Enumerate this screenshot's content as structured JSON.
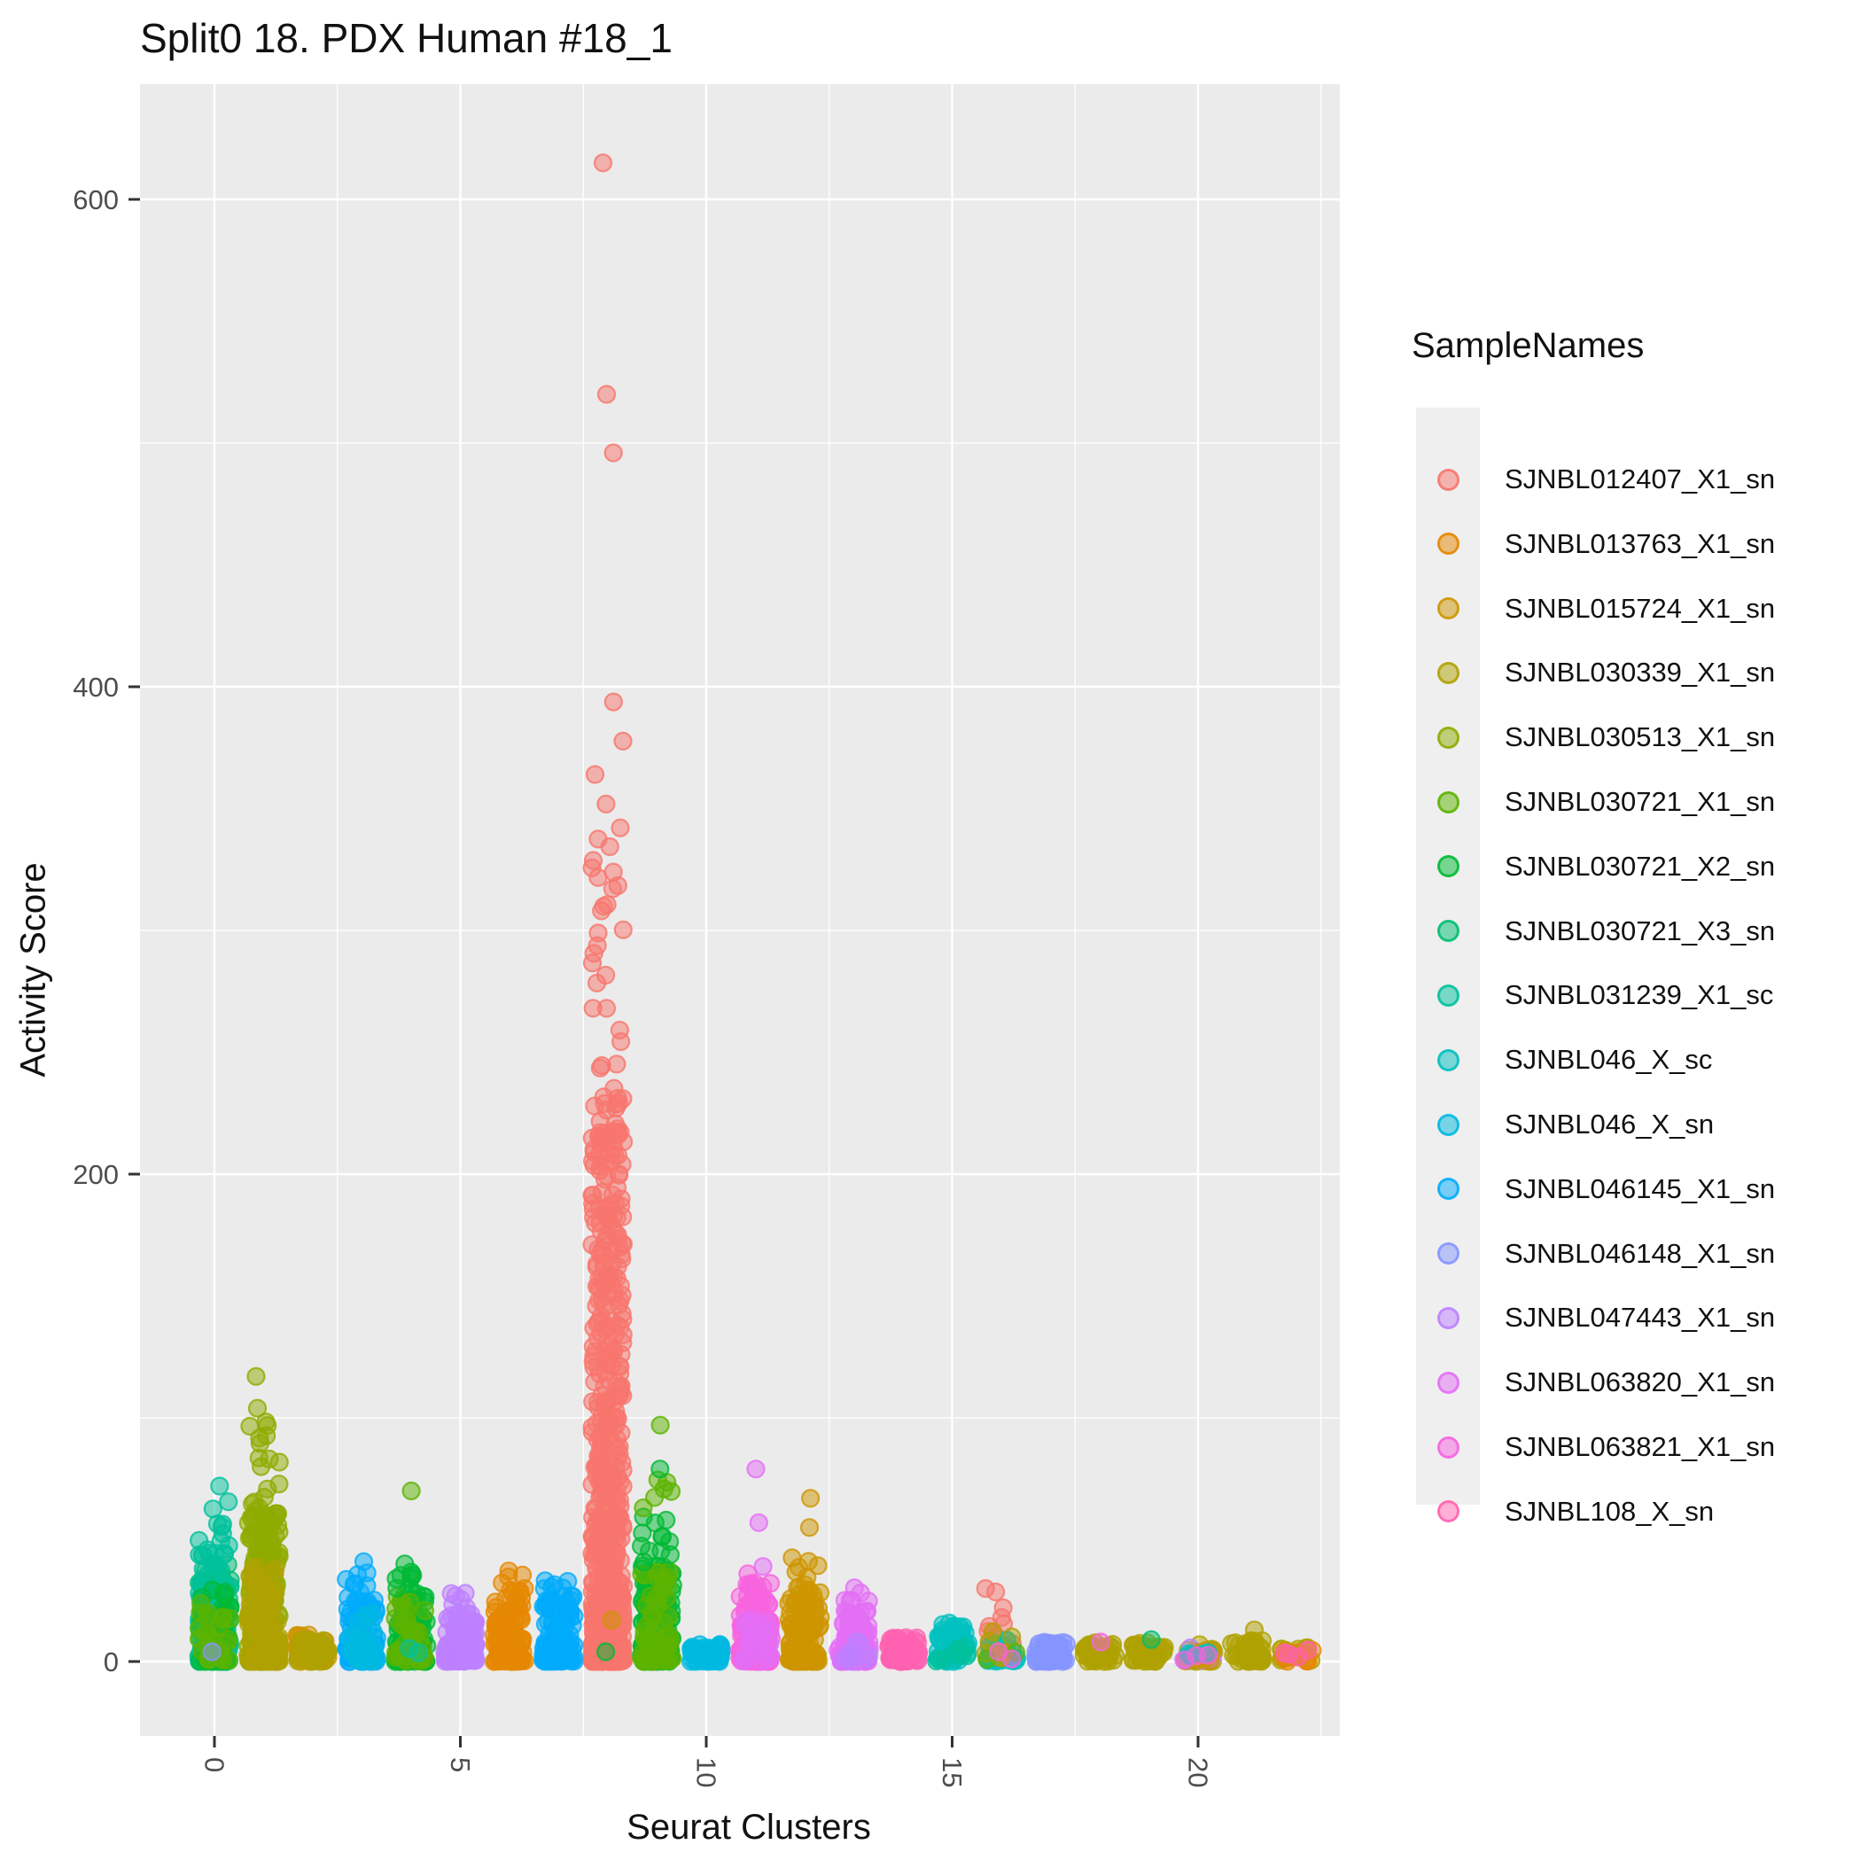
{
  "chart": {
    "title": "Split0 18. PDX Human #18_1",
    "xlabel": "Seurat Clusters",
    "ylabel": "Activity Score",
    "legend_title": "SampleNames"
  },
  "chart_data": {
    "type": "scatter",
    "variant": "jitter-strip-plot",
    "title": "Split0 18. PDX Human #18_1",
    "xlabel": "Seurat Clusters",
    "ylabel": "Activity Score",
    "legend_title": "SampleNames",
    "legend_position": "right",
    "grid": true,
    "panel_background": "#EBEBEB",
    "gridline_color": "#FFFFFF",
    "x_ticks": [
      0,
      5,
      10,
      15,
      20
    ],
    "x_minor_gridlines": [
      2.5,
      7.5,
      12.5,
      17.5,
      22.5
    ],
    "y_ticks": [
      0,
      200,
      400,
      600
    ],
    "y_minor_gridlines": [
      100,
      300,
      500
    ],
    "xlim": [
      -1.5,
      22.9
    ],
    "ylim": [
      -30,
      647
    ],
    "point_alpha": 0.5,
    "samples": [
      {
        "name": "SJNBL012407_X1_sn",
        "color": "#F8766D"
      },
      {
        "name": "SJNBL013763_X1_sn",
        "color": "#E58700"
      },
      {
        "name": "SJNBL015724_X1_sn",
        "color": "#CE9500"
      },
      {
        "name": "SJNBL030339_X1_sn",
        "color": "#AFA100"
      },
      {
        "name": "SJNBL030513_X1_sn",
        "color": "#8EAB00"
      },
      {
        "name": "SJNBL030721_X1_sn",
        "color": "#5CB300"
      },
      {
        "name": "SJNBL030721_X2_sn",
        "color": "#00B934"
      },
      {
        "name": "SJNBL030721_X3_sn",
        "color": "#00BE70"
      },
      {
        "name": "SJNBL031239_X1_sc",
        "color": "#00C19C"
      },
      {
        "name": "SJNBL046_X_sc",
        "color": "#00C0C0"
      },
      {
        "name": "SJNBL046_X_sn",
        "color": "#00B9E0"
      },
      {
        "name": "SJNBL046145_X1_sn",
        "color": "#00ABFB"
      },
      {
        "name": "SJNBL046148_X1_sn",
        "color": "#8495FF"
      },
      {
        "name": "SJNBL047443_X1_sn",
        "color": "#BD80FF"
      },
      {
        "name": "SJNBL063820_X1_sn",
        "color": "#E36EF6"
      },
      {
        "name": "SJNBL063821_X1_sn",
        "color": "#F763DF"
      },
      {
        "name": "SJNBL108_X_sn",
        "color": "#FF62B0"
      }
    ],
    "clusters": [
      {
        "cluster": 0,
        "groups": [
          {
            "sample": "SJNBL030721_X3_sn",
            "n": 140,
            "lo": 0,
            "hi": 40,
            "p": 2.0
          },
          {
            "sample": "SJNBL031239_X1_sc",
            "n": 90,
            "lo": 0,
            "hi": 48,
            "p": 1.8
          },
          {
            "sample": "SJNBL030721_X2_sn",
            "n": 50,
            "lo": 0,
            "hi": 30,
            "p": 2.0
          },
          {
            "sample": "SJNBL030721_X1_sn",
            "n": 30,
            "lo": 0,
            "hi": 25,
            "p": 2.0
          },
          {
            "sample": "SJNBL031239_X1_sc",
            "n": 8,
            "lo": 40,
            "hi": 66,
            "p": 1.0
          }
        ],
        "outliers": [
          {
            "sample": "SJNBL031239_X1_sc",
            "v": 72
          },
          {
            "sample": "SJNBL046148_X1_sn",
            "v": 4
          }
        ]
      },
      {
        "cluster": 1,
        "groups": [
          {
            "sample": "SJNBL030513_X1_sn",
            "n": 240,
            "lo": 0,
            "hi": 62,
            "p": 2.0
          },
          {
            "sample": "SJNBL030339_X1_sn",
            "n": 110,
            "lo": 0,
            "hi": 40,
            "p": 2.2
          },
          {
            "sample": "SJNBL030513_X1_sn",
            "n": 10,
            "lo": 62,
            "hi": 86,
            "p": 1.0
          },
          {
            "sample": "SJNBL030513_X1_sn",
            "n": 7,
            "lo": 86,
            "hi": 104,
            "p": 1.0
          }
        ],
        "outliers": [
          {
            "sample": "SJNBL030513_X1_sn",
            "v": 117
          }
        ]
      },
      {
        "cluster": 2,
        "groups": [
          {
            "sample": "SJNBL015724_X1_sn",
            "n": 45,
            "lo": 0,
            "hi": 11,
            "p": 1.8
          },
          {
            "sample": "SJNBL030339_X1_sn",
            "n": 35,
            "lo": 0,
            "hi": 9,
            "p": 1.8
          }
        ],
        "outliers": []
      },
      {
        "cluster": 3,
        "groups": [
          {
            "sample": "SJNBL046145_X1_sn",
            "n": 120,
            "lo": 0,
            "hi": 26,
            "p": 2.0
          },
          {
            "sample": "SJNBL046_X_sn",
            "n": 30,
            "lo": 0,
            "hi": 20,
            "p": 2.0
          },
          {
            "sample": "SJNBL046145_X1_sn",
            "n": 8,
            "lo": 26,
            "hi": 38,
            "p": 1.0
          }
        ],
        "outliers": [
          {
            "sample": "SJNBL046145_X1_sn",
            "v": 41
          }
        ]
      },
      {
        "cluster": 4,
        "groups": [
          {
            "sample": "SJNBL030721_X2_sn",
            "n": 110,
            "lo": 0,
            "hi": 30,
            "p": 2.0
          },
          {
            "sample": "SJNBL030721_X1_sn",
            "n": 40,
            "lo": 0,
            "hi": 28,
            "p": 2.0
          },
          {
            "sample": "SJNBL030721_X2_sn",
            "n": 8,
            "lo": 30,
            "hi": 42,
            "p": 1.0
          },
          {
            "sample": "SJNBL031239_X1_sc",
            "n": 2,
            "lo": 0,
            "hi": 6,
            "p": 1.0
          }
        ],
        "outliers": [
          {
            "sample": "SJNBL030721_X1_sn",
            "v": 70
          }
        ]
      },
      {
        "cluster": 5,
        "groups": [
          {
            "sample": "SJNBL047443_X1_sn",
            "n": 90,
            "lo": 0,
            "hi": 20,
            "p": 2.0
          },
          {
            "sample": "SJNBL047443_X1_sn",
            "n": 6,
            "lo": 20,
            "hi": 29,
            "p": 1.0
          }
        ],
        "outliers": []
      },
      {
        "cluster": 6,
        "groups": [
          {
            "sample": "SJNBL013763_X1_sn",
            "n": 120,
            "lo": 0,
            "hi": 30,
            "p": 2.0
          },
          {
            "sample": "SJNBL013763_X1_sn",
            "n": 6,
            "lo": 28,
            "hi": 40,
            "p": 1.0
          }
        ],
        "outliers": []
      },
      {
        "cluster": 7,
        "groups": [
          {
            "sample": "SJNBL046145_X1_sn",
            "n": 110,
            "lo": 0,
            "hi": 28,
            "p": 2.0
          },
          {
            "sample": "SJNBL046145_X1_sn",
            "n": 6,
            "lo": 26,
            "hi": 36,
            "p": 1.0
          }
        ],
        "outliers": []
      },
      {
        "cluster": 8,
        "groups": [
          {
            "sample": "SJNBL012407_X1_sn",
            "n": 650,
            "lo": 0,
            "hi": 238,
            "p": 2.6
          },
          {
            "sample": "SJNBL012407_X1_sn",
            "n": 12,
            "lo": 238,
            "hi": 295,
            "p": 1.0
          },
          {
            "sample": "SJNBL012407_X1_sn",
            "n": 18,
            "lo": 295,
            "hi": 395,
            "p": 1.0
          }
        ],
        "outliers": [
          {
            "sample": "SJNBL012407_X1_sn",
            "v": 496
          },
          {
            "sample": "SJNBL012407_X1_sn",
            "v": 520
          },
          {
            "sample": "SJNBL012407_X1_sn",
            "v": 615
          },
          {
            "sample": "SJNBL015724_X1_sn",
            "v": 17
          },
          {
            "sample": "SJNBL030721_X2_sn",
            "v": 4
          }
        ]
      },
      {
        "cluster": 9,
        "groups": [
          {
            "sample": "SJNBL030721_X2_sn",
            "n": 160,
            "lo": 0,
            "hi": 40,
            "p": 2.0
          },
          {
            "sample": "SJNBL030721_X1_sn",
            "n": 70,
            "lo": 0,
            "hi": 38,
            "p": 2.0
          },
          {
            "sample": "SJNBL030721_X2_sn",
            "n": 12,
            "lo": 40,
            "hi": 60,
            "p": 1.0
          },
          {
            "sample": "SJNBL030721_X1_sn",
            "n": 6,
            "lo": 57,
            "hi": 80,
            "p": 1.0
          }
        ],
        "outliers": [
          {
            "sample": "SJNBL030721_X1_sn",
            "v": 97
          },
          {
            "sample": "SJNBL030721_X2_sn",
            "v": 79
          }
        ]
      },
      {
        "cluster": 10,
        "groups": [
          {
            "sample": "SJNBL046_X_sn",
            "n": 60,
            "lo": 0,
            "hi": 7,
            "p": 1.5
          }
        ],
        "outliers": []
      },
      {
        "cluster": 11,
        "groups": [
          {
            "sample": "SJNBL063821_X1_sn",
            "n": 150,
            "lo": 0,
            "hi": 33,
            "p": 2.0
          },
          {
            "sample": "SJNBL063820_X1_sn",
            "n": 30,
            "lo": 0,
            "hi": 25,
            "p": 2.0
          }
        ],
        "outliers": [
          {
            "sample": "SJNBL063820_X1_sn",
            "v": 39
          },
          {
            "sample": "SJNBL063820_X1_sn",
            "v": 57
          },
          {
            "sample": "SJNBL063820_X1_sn",
            "v": 79
          },
          {
            "sample": "SJNBL063821_X1_sn",
            "v": 36
          }
        ]
      },
      {
        "cluster": 12,
        "groups": [
          {
            "sample": "SJNBL015724_X1_sn",
            "n": 130,
            "lo": 0,
            "hi": 32,
            "p": 2.2
          },
          {
            "sample": "SJNBL015724_X1_sn",
            "n": 6,
            "lo": 32,
            "hi": 44,
            "p": 1.0
          }
        ],
        "outliers": [
          {
            "sample": "SJNBL015724_X1_sn",
            "v": 55
          },
          {
            "sample": "SJNBL015724_X1_sn",
            "v": 67
          }
        ]
      },
      {
        "cluster": 13,
        "groups": [
          {
            "sample": "SJNBL063820_X1_sn",
            "n": 110,
            "lo": 0,
            "hi": 22,
            "p": 2.0
          },
          {
            "sample": "SJNBL063820_X1_sn",
            "n": 6,
            "lo": 22,
            "hi": 32,
            "p": 1.0
          },
          {
            "sample": "SJNBL047443_X1_sn",
            "n": 10,
            "lo": 0,
            "hi": 10,
            "p": 2.0
          }
        ],
        "outliers": []
      },
      {
        "cluster": 14,
        "groups": [
          {
            "sample": "SJNBL108_X_sn",
            "n": 70,
            "lo": 0,
            "hi": 10,
            "p": 1.6
          }
        ],
        "outliers": []
      },
      {
        "cluster": 15,
        "groups": [
          {
            "sample": "SJNBL046_X_sc",
            "n": 80,
            "lo": 0,
            "hi": 16,
            "p": 1.8
          },
          {
            "sample": "SJNBL031239_X1_sc",
            "n": 10,
            "lo": 0,
            "hi": 8,
            "p": 1.8
          }
        ],
        "outliers": []
      },
      {
        "cluster": 16,
        "groups": [
          {
            "sample": "SJNBL012407_X1_sn",
            "n": 16,
            "lo": 3,
            "hi": 30,
            "p": 1.2
          },
          {
            "sample": "SJNBL046_X_sc",
            "n": 25,
            "lo": 0,
            "hi": 9,
            "p": 1.6
          },
          {
            "sample": "SJNBL030339_X1_sn",
            "n": 8,
            "lo": 0,
            "hi": 13,
            "p": 1.5
          },
          {
            "sample": "SJNBL030721_X1_sn",
            "n": 2,
            "lo": 0,
            "hi": 4,
            "p": 1.0
          },
          {
            "sample": "SJNBL063821_X1_sn",
            "n": 2,
            "lo": 0,
            "hi": 5,
            "p": 1.0
          }
        ],
        "outliers": []
      },
      {
        "cluster": 17,
        "groups": [
          {
            "sample": "SJNBL046148_X1_sn",
            "n": 70,
            "lo": 0,
            "hi": 8,
            "p": 1.5
          }
        ],
        "outliers": []
      },
      {
        "cluster": 18,
        "groups": [
          {
            "sample": "SJNBL030339_X1_sn",
            "n": 45,
            "lo": 0,
            "hi": 8,
            "p": 1.5
          }
        ],
        "outliers": [
          {
            "sample": "SJNBL063821_X1_sn",
            "v": 8
          }
        ]
      },
      {
        "cluster": 19,
        "groups": [
          {
            "sample": "SJNBL030339_X1_sn",
            "n": 45,
            "lo": 0,
            "hi": 8,
            "p": 1.5
          }
        ],
        "outliers": [
          {
            "sample": "SJNBL030721_X3_sn",
            "v": 9
          }
        ]
      },
      {
        "cluster": 20,
        "groups": [
          {
            "sample": "SJNBL030339_X1_sn",
            "n": 30,
            "lo": 0,
            "hi": 7,
            "p": 1.5
          },
          {
            "sample": "SJNBL047443_X1_sn",
            "n": 6,
            "lo": 0,
            "hi": 6,
            "p": 1.0
          },
          {
            "sample": "SJNBL015724_X1_sn",
            "n": 8,
            "lo": 0,
            "hi": 5,
            "p": 1.0
          },
          {
            "sample": "SJNBL046_X_sc",
            "n": 4,
            "lo": 0,
            "hi": 4,
            "p": 1.0
          },
          {
            "sample": "SJNBL063821_X1_sn",
            "n": 3,
            "lo": 0,
            "hi": 4,
            "p": 1.0
          }
        ],
        "outliers": []
      },
      {
        "cluster": 21,
        "groups": [
          {
            "sample": "SJNBL030339_X1_sn",
            "n": 55,
            "lo": 0,
            "hi": 9,
            "p": 1.5
          }
        ],
        "outliers": [
          {
            "sample": "SJNBL030339_X1_sn",
            "v": 13
          }
        ]
      },
      {
        "cluster": 22,
        "groups": [
          {
            "sample": "SJNBL030339_X1_sn",
            "n": 18,
            "lo": 0,
            "hi": 6,
            "p": 1.0
          },
          {
            "sample": "SJNBL013763_X1_sn",
            "n": 10,
            "lo": 0,
            "hi": 5,
            "p": 1.0
          },
          {
            "sample": "SJNBL108_X_sn",
            "n": 4,
            "lo": 0,
            "hi": 5,
            "p": 1.0
          }
        ],
        "outliers": []
      }
    ]
  }
}
